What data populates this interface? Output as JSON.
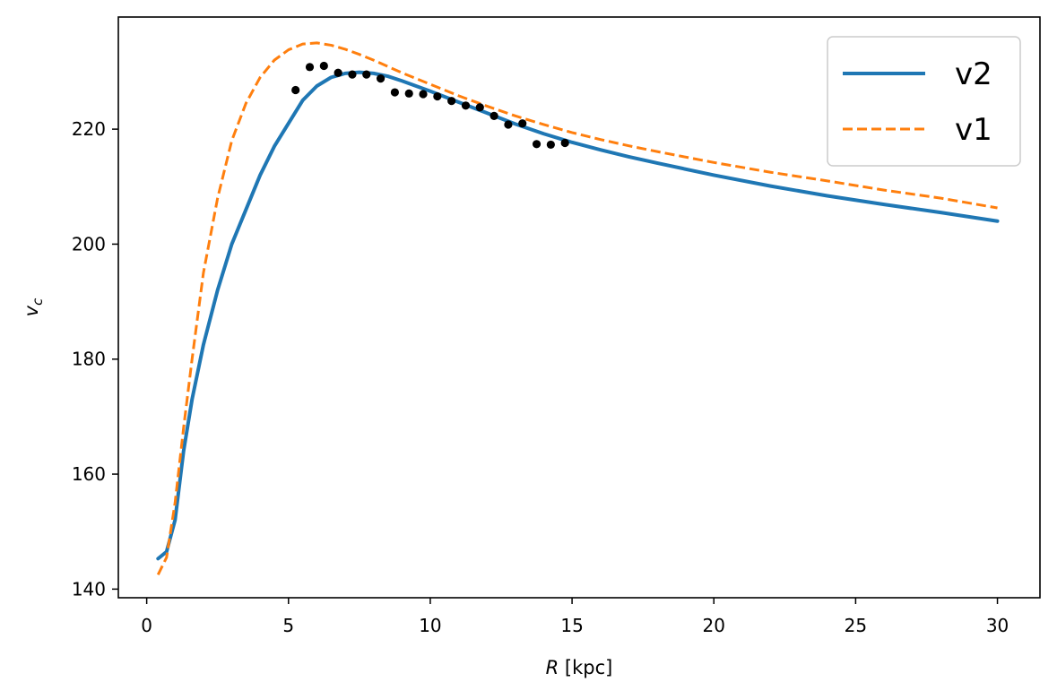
{
  "chart_data": {
    "type": "line",
    "xlabel": {
      "italic": "R",
      "rest": " [kpc]"
    },
    "ylabel": {
      "base": "v",
      "sub": "c"
    },
    "xlim": [
      -1,
      31.5
    ],
    "ylim": [
      138.5,
      239.5
    ],
    "xticks": [
      0,
      5,
      10,
      15,
      20,
      25,
      30
    ],
    "yticks": [
      140,
      160,
      180,
      200,
      220
    ],
    "xtick_labels": [
      "0",
      "5",
      "10",
      "15",
      "20",
      "25",
      "30"
    ],
    "ytick_labels": [
      "140",
      "160",
      "180",
      "200",
      "220"
    ],
    "grid": false,
    "legend_position": "top-right",
    "series": [
      {
        "name": "v2",
        "style": "solid",
        "color": "#1f77b4",
        "points": [
          [
            0.4,
            145.3
          ],
          [
            0.7,
            146.5
          ],
          [
            1.0,
            152.0
          ],
          [
            1.3,
            164.0
          ],
          [
            1.6,
            173.0
          ],
          [
            2.0,
            182.5
          ],
          [
            2.5,
            192.0
          ],
          [
            3.0,
            200.0
          ],
          [
            3.5,
            206.0
          ],
          [
            4.0,
            212.0
          ],
          [
            4.5,
            217.0
          ],
          [
            5.0,
            221.0
          ],
          [
            5.5,
            225.0
          ],
          [
            6.0,
            227.5
          ],
          [
            6.5,
            229.0
          ],
          [
            7.0,
            229.7
          ],
          [
            7.5,
            229.9
          ],
          [
            8.0,
            229.7
          ],
          [
            8.5,
            229.2
          ],
          [
            9.0,
            228.4
          ],
          [
            10.0,
            226.6
          ],
          [
            11.0,
            224.7
          ],
          [
            12.0,
            222.8
          ],
          [
            13.0,
            220.9
          ],
          [
            14.0,
            219.2
          ],
          [
            15.0,
            217.7
          ],
          [
            16.0,
            216.4
          ],
          [
            17.0,
            215.2
          ],
          [
            18.0,
            214.1
          ],
          [
            20.0,
            212.0
          ],
          [
            22.0,
            210.1
          ],
          [
            24.0,
            208.4
          ],
          [
            26.0,
            206.9
          ],
          [
            28.0,
            205.5
          ],
          [
            30.0,
            204.0
          ]
        ]
      },
      {
        "name": "v1",
        "style": "dashed",
        "color": "#ff7f0e",
        "points": [
          [
            0.4,
            142.5
          ],
          [
            0.7,
            145.5
          ],
          [
            1.0,
            155.0
          ],
          [
            1.3,
            168.0
          ],
          [
            1.6,
            180.0
          ],
          [
            2.0,
            195.0
          ],
          [
            2.5,
            208.0
          ],
          [
            3.0,
            218.0
          ],
          [
            3.5,
            224.5
          ],
          [
            4.0,
            229.0
          ],
          [
            4.5,
            232.0
          ],
          [
            5.0,
            233.8
          ],
          [
            5.5,
            234.8
          ],
          [
            6.0,
            235.0
          ],
          [
            6.5,
            234.6
          ],
          [
            7.0,
            233.9
          ],
          [
            7.5,
            233.0
          ],
          [
            8.0,
            232.0
          ],
          [
            9.0,
            229.8
          ],
          [
            10.0,
            227.8
          ],
          [
            11.0,
            225.8
          ],
          [
            12.0,
            224.0
          ],
          [
            13.0,
            222.3
          ],
          [
            14.0,
            220.8
          ],
          [
            15.0,
            219.4
          ],
          [
            16.0,
            218.2
          ],
          [
            17.0,
            217.1
          ],
          [
            18.0,
            216.1
          ],
          [
            20.0,
            214.2
          ],
          [
            22.0,
            212.5
          ],
          [
            24.0,
            211.0
          ],
          [
            26.0,
            209.4
          ],
          [
            28.0,
            208.0
          ],
          [
            30.0,
            206.3
          ]
        ]
      },
      {
        "name": "",
        "style": "markers",
        "color": "#000000",
        "points": [
          [
            5.25,
            226.8
          ],
          [
            5.75,
            230.8
          ],
          [
            6.25,
            231.0
          ],
          [
            6.75,
            229.8
          ],
          [
            7.25,
            229.5
          ],
          [
            7.75,
            229.5
          ],
          [
            8.25,
            228.8
          ],
          [
            8.75,
            226.4
          ],
          [
            9.25,
            226.2
          ],
          [
            9.75,
            226.1
          ],
          [
            10.25,
            225.7
          ],
          [
            10.75,
            224.9
          ],
          [
            11.25,
            224.1
          ],
          [
            11.75,
            223.8
          ],
          [
            12.25,
            222.3
          ],
          [
            12.75,
            220.8
          ],
          [
            13.25,
            221.0
          ],
          [
            13.75,
            217.4
          ],
          [
            14.25,
            217.3
          ],
          [
            14.75,
            217.6
          ]
        ]
      }
    ],
    "legend": [
      {
        "label": "v2",
        "style": "solid",
        "color": "#1f77b4"
      },
      {
        "label": "v1",
        "style": "dashed",
        "color": "#ff7f0e"
      }
    ]
  }
}
